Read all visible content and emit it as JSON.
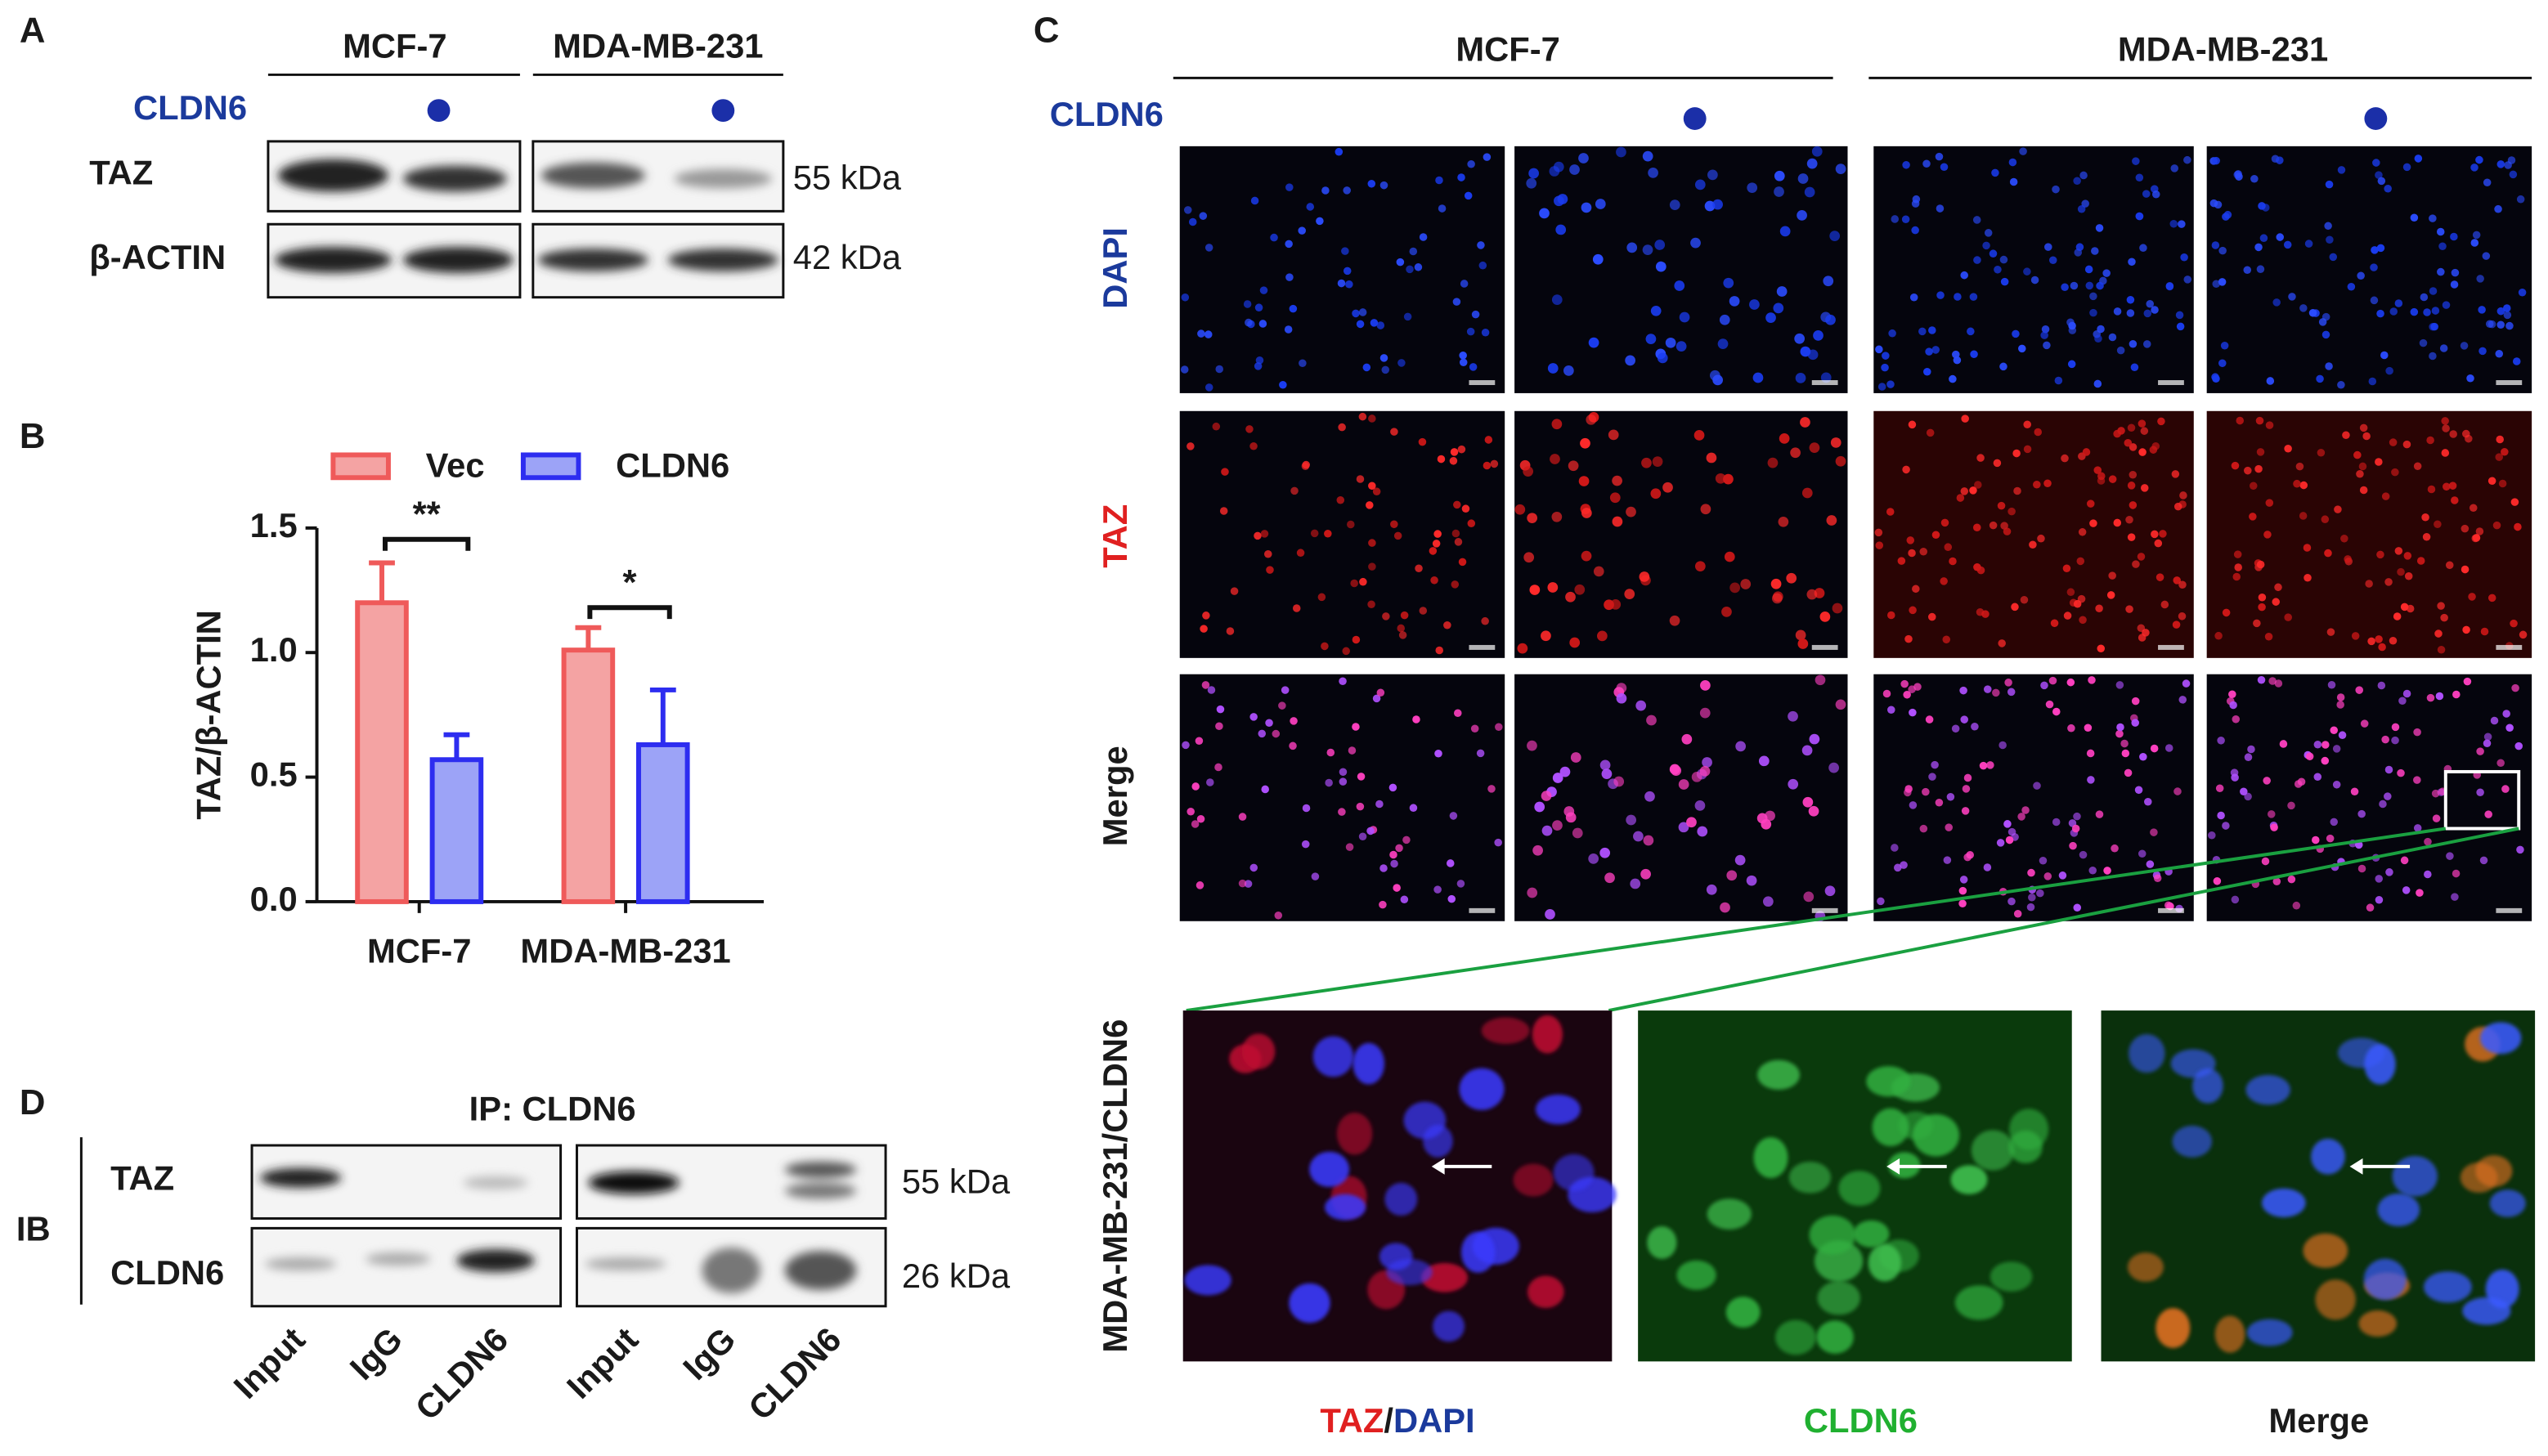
{
  "panel_a": {
    "letter": "A",
    "groups": [
      "MCF-7",
      "MDA-MB-231"
    ],
    "condition": "CLDN6",
    "rows": [
      {
        "label": "TAZ",
        "size": "55 kDa"
      },
      {
        "label": "β-ACTIN",
        "size": "42 kDa"
      }
    ]
  },
  "chart_data": {
    "type": "bar",
    "letter": "B",
    "y_label": "TAZ/β-ACTIN",
    "categories": [
      "MCF-7",
      "MDA-MB-231"
    ],
    "series": [
      {
        "name": "Vec",
        "color": "#f4a3a3",
        "edge": "#ef5a5a",
        "values": [
          1.2,
          1.01
        ],
        "errors": [
          0.16,
          0.09
        ]
      },
      {
        "name": "CLDN6",
        "color": "#9ca3f7",
        "edge": "#2d2df0",
        "values": [
          0.57,
          0.63
        ],
        "errors": [
          0.1,
          0.22
        ]
      }
    ],
    "ylim": [
      0,
      1.5
    ],
    "yticks": [
      {
        "value": 0,
        "label": "0.0"
      },
      0.5,
      {
        "value": 1,
        "label": "1.0"
      },
      1.5
    ],
    "annotations": [
      "**",
      "*"
    ]
  },
  "panel_c": {
    "letter": "C",
    "groups": [
      "MCF-7",
      "MDA-MB-231"
    ],
    "condition": "CLDN6",
    "rows": [
      "DAPI",
      "TAZ",
      "Merge"
    ],
    "zoom_label": "MDA-MB-231/CLDN6",
    "zoom_captions": [
      [
        "TAZ",
        "/",
        "DAPI"
      ],
      [
        "CLDN6"
      ],
      [
        "Merge"
      ]
    ]
  },
  "panel_d": {
    "letter": "D",
    "title": "IP: CLDN6",
    "ib": "IB",
    "rows": [
      {
        "label": "TAZ",
        "size": "55 kDa"
      },
      {
        "label": "CLDN6",
        "size": "26 kDa"
      }
    ],
    "lanes": [
      "Input",
      "IgG",
      "CLDN6",
      "Input",
      "IgG",
      "CLDN6"
    ]
  }
}
